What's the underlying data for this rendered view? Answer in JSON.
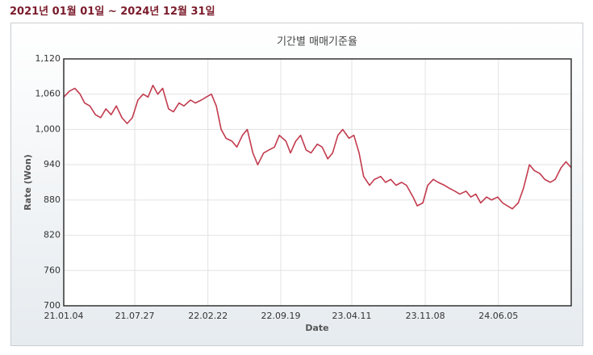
{
  "header": "2021년 01월 01일 ~ 2024년 12월 31일",
  "chart_data": {
    "type": "line",
    "title": "기간별 매매기준율",
    "x_label": "Date",
    "y_label": "Rate (Won)",
    "color": "#c23b4e",
    "grid": true,
    "xlim": [
      "21.01.04",
      "24.12.31"
    ],
    "xticks": [
      "21.01.04",
      "21.07.27",
      "22.02.22",
      "22.09.19",
      "23.04.11",
      "23.11.08",
      "24.06.05"
    ],
    "ylim": [
      700,
      1120
    ],
    "yticks": [
      700,
      760,
      820,
      880,
      940,
      {
        "value": 1000,
        "label": "1,000"
      },
      {
        "value": 1060,
        "label": "1,060"
      },
      {
        "value": 1120,
        "label": "1,120"
      }
    ],
    "x": [
      "21.01.04",
      "21.01.20",
      "21.02.05",
      "21.02.20",
      "21.03.05",
      "21.03.20",
      "21.04.05",
      "21.04.20",
      "21.05.05",
      "21.05.20",
      "21.06.04",
      "21.06.20",
      "21.07.05",
      "21.07.20",
      "21.08.05",
      "21.08.20",
      "21.09.03",
      "21.09.17",
      "21.10.01",
      "21.10.15",
      "21.11.01",
      "21.11.15",
      "21.12.01",
      "21.12.15",
      "22.01.03",
      "22.01.17",
      "22.02.03",
      "22.02.17",
      "22.03.04",
      "22.03.18",
      "22.04.01",
      "22.04.15",
      "22.05.02",
      "22.05.16",
      "22.06.01",
      "22.06.15",
      "22.07.01",
      "22.07.15",
      "22.08.01",
      "22.08.16",
      "22.09.01",
      "22.09.15",
      "22.10.04",
      "22.10.17",
      "22.11.01",
      "22.11.15",
      "22.12.01",
      "22.12.15",
      "23.01.02",
      "23.01.16",
      "23.02.01",
      "23.02.15",
      "23.03.02",
      "23.03.16",
      "23.04.03",
      "23.04.17",
      "23.05.02",
      "23.05.15",
      "23.06.01",
      "23.06.15",
      "23.07.03",
      "23.07.17",
      "23.08.01",
      "23.08.16",
      "23.09.01",
      "23.09.15",
      "23.10.04",
      "23.10.16",
      "23.11.01",
      "23.11.15",
      "23.12.01",
      "23.12.15",
      "24.01.02",
      "24.01.16",
      "24.02.01",
      "24.02.15",
      "24.03.04",
      "24.03.18",
      "24.04.01",
      "24.04.15",
      "24.05.02",
      "24.05.16",
      "24.06.03",
      "24.06.17",
      "24.07.01",
      "24.07.15",
      "24.08.01",
      "24.08.16",
      "24.09.02",
      "24.09.16",
      "24.10.02",
      "24.10.16",
      "24.11.01",
      "24.11.15",
      "24.12.02",
      "24.12.16",
      "24.12.31"
    ],
    "values": [
      1055,
      1065,
      1070,
      1060,
      1045,
      1040,
      1025,
      1020,
      1035,
      1025,
      1040,
      1020,
      1010,
      1020,
      1050,
      1060,
      1055,
      1075,
      1060,
      1070,
      1035,
      1030,
      1045,
      1040,
      1050,
      1045,
      1050,
      1055,
      1060,
      1040,
      1000,
      985,
      980,
      970,
      990,
      1000,
      960,
      940,
      960,
      965,
      970,
      990,
      980,
      960,
      980,
      990,
      965,
      960,
      975,
      970,
      950,
      960,
      990,
      1000,
      985,
      990,
      960,
      920,
      905,
      915,
      920,
      910,
      915,
      905,
      910,
      905,
      885,
      870,
      875,
      905,
      915,
      910,
      905,
      900,
      895,
      890,
      895,
      885,
      890,
      875,
      885,
      880,
      885,
      875,
      870,
      865,
      875,
      900,
      940,
      930,
      925,
      915,
      910,
      915,
      935,
      945,
      935
    ]
  }
}
